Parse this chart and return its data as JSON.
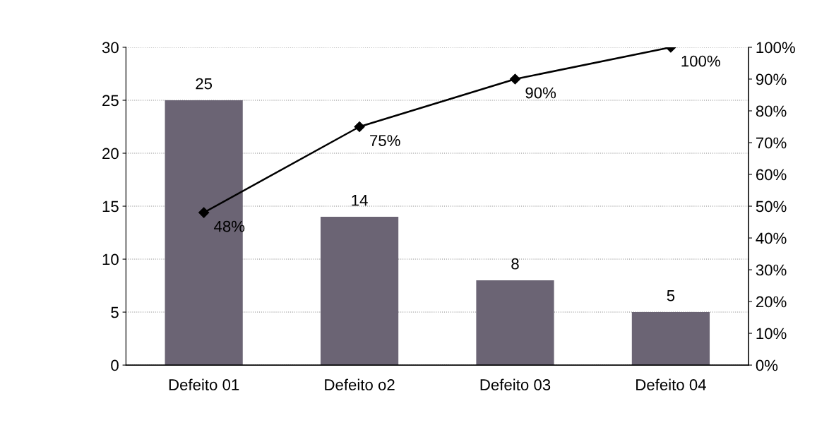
{
  "chart_data": {
    "type": "bar",
    "categories": [
      "Defeito 01",
      "Defeito o2",
      "Defeito 03",
      "Defeito 04"
    ],
    "series": [
      {
        "color": "#6b6474",
        "values": [
          25,
          14,
          8,
          5
        ]
      },
      {
        "type": "line",
        "axis": "y2",
        "color": "#000000",
        "marker": "diamond",
        "line_style": "solid",
        "values": [
          48,
          75,
          90,
          100
        ],
        "value_labels": [
          "48%",
          "75%",
          "90%",
          "100%"
        ]
      }
    ],
    "data_labels": true,
    "ylim": [
      0,
      30
    ],
    "yticks": [
      0,
      5,
      10,
      15,
      20,
      25,
      30
    ],
    "y2lim": [
      0,
      100
    ],
    "y2ticks": [
      {
        "value": 0,
        "label": "0%"
      },
      {
        "value": 10,
        "label": "10%"
      },
      {
        "value": 20,
        "label": "20%"
      },
      {
        "value": 30,
        "label": "30%"
      },
      {
        "value": 40,
        "label": "40%"
      },
      {
        "value": 50,
        "label": "50%"
      },
      {
        "value": 60,
        "label": "60%"
      },
      {
        "value": 70,
        "label": "70%"
      },
      {
        "value": 80,
        "label": "80%"
      },
      {
        "value": 90,
        "label": "90%"
      },
      {
        "value": 100,
        "label": "100%"
      }
    ],
    "grid": "y"
  }
}
